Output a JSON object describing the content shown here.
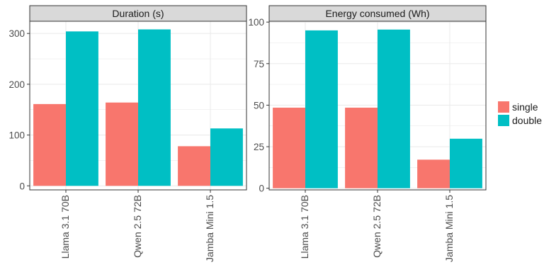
{
  "chart_data": [
    {
      "type": "bar",
      "title": "Duration (s)",
      "categories": [
        "Llama 3.1 70B",
        "Qwen 2.5 72B",
        "Jamba Mini 1.5"
      ],
      "series": [
        {
          "name": "single",
          "values": [
            161,
            164,
            78
          ]
        },
        {
          "name": "double",
          "values": [
            304,
            308,
            113
          ]
        }
      ],
      "ylim": [
        -8,
        324
      ],
      "yticks": [
        0,
        100,
        200,
        300
      ],
      "grid": true
    },
    {
      "type": "bar",
      "title": "Energy consumed (Wh)",
      "categories": [
        "Llama 3.1 70B",
        "Qwen 2.5 72B",
        "Jamba Mini 1.5"
      ],
      "series": [
        {
          "name": "single",
          "values": [
            48.5,
            48.5,
            17.2
          ]
        },
        {
          "name": "double",
          "values": [
            95,
            95.5,
            29.8
          ]
        }
      ],
      "ylim": [
        -1,
        100.5
      ],
      "yticks": [
        0,
        25,
        50,
        75,
        100
      ],
      "grid": true
    }
  ],
  "legend": {
    "placement": "right",
    "items": [
      {
        "label": "single",
        "color": "#F8766D"
      },
      {
        "label": "double",
        "color": "#00BFC4"
      }
    ]
  },
  "colors": {
    "single": "#F8766D",
    "double": "#00BFC4",
    "strip": "#D9D9D9",
    "grid": "#EBEBEB",
    "border": "#333333"
  }
}
